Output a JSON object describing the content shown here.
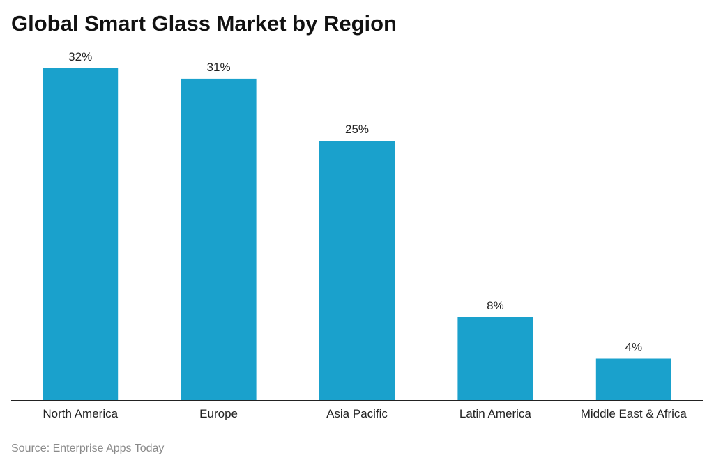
{
  "chart_data": {
    "type": "bar",
    "title": "Global Smart Glass Market by Region",
    "categories": [
      "North America",
      "Europe",
      "Asia Pacific",
      "Latin America",
      "Middle East & Africa"
    ],
    "values": [
      32,
      31,
      25,
      8,
      4
    ],
    "value_labels": [
      "32%",
      "31%",
      "25%",
      "8%",
      "4%"
    ],
    "xlabel": "",
    "ylabel": "",
    "ylim": [
      0,
      32
    ],
    "grid": false,
    "legend": "none",
    "bar_color": "#1aa1cc",
    "axis_color": "#222222"
  },
  "footer": {
    "source": "Source: Enterprise Apps Today"
  }
}
